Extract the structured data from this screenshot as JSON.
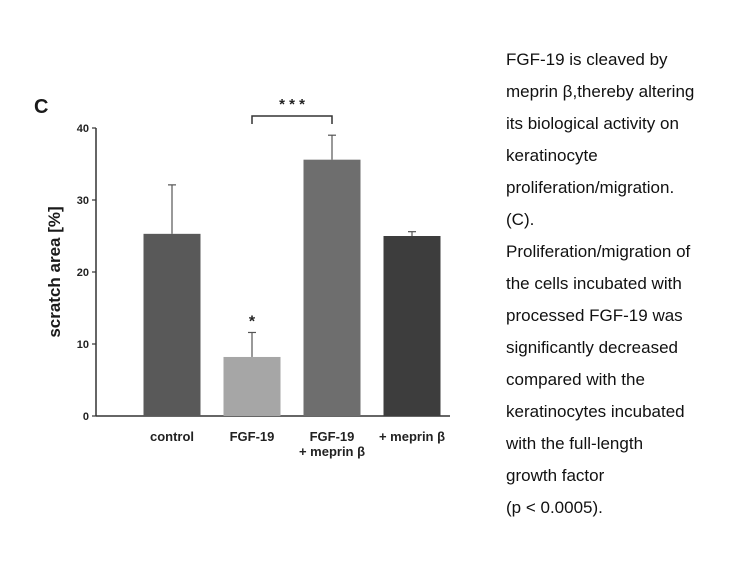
{
  "panel_label": "C",
  "chart_data": {
    "type": "bar",
    "ylabel": "scratch area [%]",
    "ylim": [
      0,
      40
    ],
    "yticks": [
      0,
      10,
      20,
      30,
      40
    ],
    "categories": [
      {
        "lines": [
          "control"
        ]
      },
      {
        "lines": [
          "FGF-19"
        ]
      },
      {
        "lines": [
          "FGF-19",
          "+ meprin β"
        ]
      },
      {
        "lines": [
          "+ meprin β"
        ]
      }
    ],
    "values": [
      25.3,
      8.2,
      35.6,
      25.0
    ],
    "errors": [
      6.8,
      3.4,
      3.4,
      0.6
    ],
    "colors": [
      "#595959",
      "#a6a6a6",
      "#6e6e6e",
      "#3d3d3d"
    ],
    "annotations": [
      {
        "text": "*",
        "bar": 1
      },
      {
        "text": "* * *",
        "from_bar": 1,
        "to_bar": 2
      }
    ]
  },
  "caption_lines": [
    "FGF-19 is cleaved by",
    "meprin β,thereby altering",
    "its biological activity on",
    "keratinocyte",
    "proliferation/migration.",
    "(C).",
    "Proliferation/migration of",
    "the cells incubated with",
    "processed FGF-19 was",
    "significantly decreased",
    "compared with the",
    "keratinocytes incubated",
    "with the full-length",
    "growth factor",
    "(p < 0.0005)."
  ]
}
